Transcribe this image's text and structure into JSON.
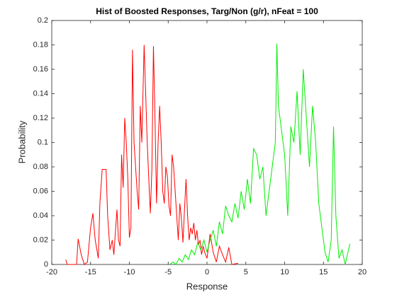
{
  "chart_data": {
    "type": "line",
    "title": "Hist of Boosted Responses, Targ/Non (g/r), nFeat = 100",
    "xlabel": "Response",
    "ylabel": "Probability",
    "xlim": [
      -20,
      20
    ],
    "xticks": [
      -20,
      -15,
      -10,
      -5,
      0,
      5,
      10,
      15,
      20
    ],
    "ylim": [
      0,
      0.2
    ],
    "yticks": [
      0,
      0.02,
      0.04,
      0.06,
      0.08,
      0.1,
      0.12,
      0.14,
      0.16,
      0.18,
      0.2
    ],
    "series": [
      {
        "color": "#ff0000",
        "x": [
          -18.2,
          -18,
          -16.8,
          -16.6,
          -16.2,
          -15.8,
          -15.4,
          -15,
          -14.7,
          -14.4,
          -14,
          -13.8,
          -13.5,
          -13,
          -12.8,
          -12.5,
          -12.2,
          -12,
          -11.6,
          -11.4,
          -11.2,
          -11,
          -10.8,
          -10.6,
          -10.4,
          -10.2,
          -10,
          -9.8,
          -9.6,
          -9.4,
          -9.2,
          -9,
          -8.8,
          -8.6,
          -8.4,
          -8.1,
          -7.9,
          -7.7,
          -7.5,
          -7.3,
          -7.1,
          -6.9,
          -6.7,
          -6.5,
          -6.3,
          -6.1,
          -5.9,
          -5.7,
          -5.5,
          -5.3,
          -5.1,
          -4.9,
          -4.7,
          -4.5,
          -4.3,
          -4.1,
          -3.9,
          -3.7,
          -3.5,
          -3.3,
          -3.1,
          -2.9,
          -2.7,
          -2.5,
          -2.3,
          -2.1,
          -1.9,
          -1.7,
          -1.5,
          -1.3,
          -1.1,
          -0.9,
          -0.7,
          -0.5,
          -0.3,
          0,
          0.4,
          0.8,
          1.2,
          1.6,
          2,
          2.4,
          2.8,
          3.2,
          4
        ],
        "values": [
          0.004,
          0,
          0,
          0.021,
          0.008,
          0,
          0.002,
          0.03,
          0.042,
          0.02,
          0.005,
          0.05,
          0.078,
          0.078,
          0.04,
          0.012,
          0.02,
          0.008,
          0.045,
          0.02,
          0.015,
          0.09,
          0.063,
          0.12,
          0.1,
          0.07,
          0.022,
          0.03,
          0.176,
          0.1,
          0.08,
          0.06,
          0.045,
          0.13,
          0.1,
          0.18,
          0.14,
          0.1,
          0.07,
          0.042,
          0.078,
          0.179,
          0.12,
          0.05,
          0.1,
          0.13,
          0.1,
          0.06,
          0.05,
          0.08,
          0.072,
          0.048,
          0.04,
          0.09,
          0.08,
          0.06,
          0.04,
          0.02,
          0.05,
          0.038,
          0.018,
          0.045,
          0.07,
          0.04,
          0.02,
          0.03,
          0.025,
          0.034,
          0.02,
          0.028,
          0.016,
          0.02,
          0.008,
          0.015,
          0.01,
          0.005,
          0.025,
          0.01,
          0.002,
          0.015,
          0.008,
          0.002,
          0.014,
          0,
          0.001
        ]
      },
      {
        "color": "#00ee00",
        "x": [
          -4.8,
          -4.4,
          -4,
          -3.6,
          -3.2,
          -2.8,
          -2.4,
          -2,
          -1.6,
          -1.2,
          -0.8,
          -0.4,
          0,
          0.4,
          0.8,
          1.2,
          1.6,
          2,
          2.4,
          2.8,
          3.2,
          3.6,
          4,
          4.4,
          4.8,
          5.2,
          5.6,
          6,
          6.4,
          6.8,
          7.2,
          7.6,
          8,
          8.4,
          8.8,
          9,
          9.2,
          9.6,
          10,
          10.4,
          10.8,
          11.2,
          11.6,
          12,
          12.4,
          12.8,
          13.2,
          13.6,
          14,
          14.4,
          14.8,
          15.2,
          15.6,
          16,
          16.3,
          16.6,
          17,
          17.4,
          17.8,
          18.4
        ],
        "values": [
          0,
          0.002,
          0,
          0.005,
          0.002,
          0.008,
          0.004,
          0.012,
          0.008,
          0.018,
          0.012,
          0.02,
          0.01,
          0.02,
          0.028,
          0.015,
          0.035,
          0.025,
          0.048,
          0.04,
          0.035,
          0.05,
          0.038,
          0.06,
          0.045,
          0.07,
          0.05,
          0.095,
          0.09,
          0.07,
          0.08,
          0.04,
          0.06,
          0.08,
          0.1,
          0.181,
          0.13,
          0.11,
          0.09,
          0.04,
          0.113,
          0.1,
          0.142,
          0.09,
          0.16,
          0.12,
          0.08,
          0.13,
          0.1,
          0.05,
          0.03,
          0.01,
          0.002,
          0.02,
          0.113,
          0.04,
          0.005,
          0.012,
          0,
          0.017
        ]
      }
    ]
  }
}
